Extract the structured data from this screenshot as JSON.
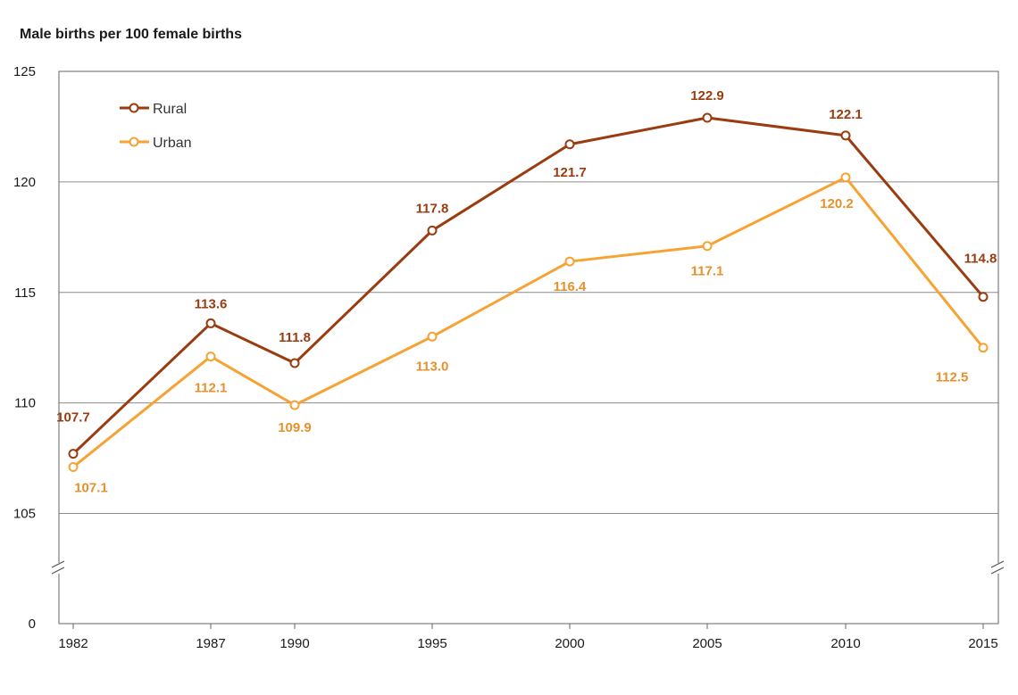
{
  "chart_data": {
    "type": "line",
    "title": "Male births per 100 female births",
    "x": [
      "1982",
      "1987",
      "1990",
      "1995",
      "2000",
      "2005",
      "2010",
      "2015"
    ],
    "series": [
      {
        "name": "Rural",
        "color": "#9a3c10",
        "values": [
          107.7,
          113.6,
          111.8,
          117.8,
          121.7,
          122.9,
          122.1,
          114.8
        ]
      },
      {
        "name": "Urban",
        "color": "#f7a234",
        "values": [
          107.1,
          112.1,
          109.9,
          113.0,
          116.4,
          117.1,
          120.2,
          112.5
        ]
      }
    ],
    "y_ticks": [
      "125",
      "120",
      "115",
      "110",
      "105",
      "0"
    ],
    "ylim": [
      103,
      125
    ],
    "y_axis_break": true,
    "grid": true,
    "legend": "top-left"
  }
}
